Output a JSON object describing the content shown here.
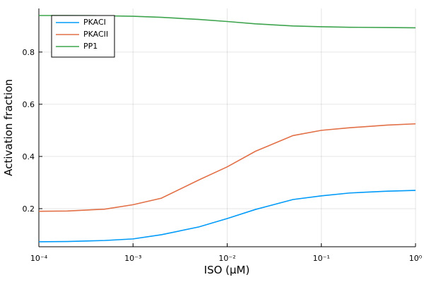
{
  "chart_data": {
    "type": "line",
    "x_label": "ISO (μM)",
    "y_label": "Activation fraction",
    "x": [
      0.0001,
      0.0002,
      0.0005,
      0.001,
      0.002,
      0.005,
      0.01,
      0.02,
      0.05,
      0.1,
      0.2,
      0.5,
      1
    ],
    "series": [
      {
        "name": "PKACI",
        "color": "#009af9",
        "values": [
          0.073,
          0.074,
          0.078,
          0.084,
          0.1,
          0.13,
          0.162,
          0.197,
          0.235,
          0.249,
          0.26,
          0.267,
          0.27
        ]
      },
      {
        "name": "PKACII",
        "color": "#e26f46",
        "values": [
          0.19,
          0.191,
          0.198,
          0.215,
          0.24,
          0.31,
          0.36,
          0.42,
          0.48,
          0.5,
          0.51,
          0.52,
          0.525
        ]
      },
      {
        "name": "PP1",
        "color": "#3da44d",
        "values": [
          0.94,
          0.94,
          0.939,
          0.937,
          0.933,
          0.925,
          0.917,
          0.908,
          0.9,
          0.897,
          0.895,
          0.894,
          0.893
        ]
      }
    ],
    "xscale": "log",
    "xlim": [
      0.0001,
      1
    ],
    "xticks": [
      {
        "value": 0.0001,
        "label": "10⁻⁴"
      },
      {
        "value": 0.001,
        "label": "10⁻³"
      },
      {
        "value": 0.01,
        "label": "10⁻²"
      },
      {
        "value": 0.1,
        "label": "10⁻¹"
      },
      {
        "value": 1,
        "label": "10⁰"
      }
    ],
    "ylim": [
      0.054,
      0.967
    ],
    "yticks": [
      0.2,
      0.4,
      0.6,
      0.8
    ],
    "grid": true,
    "legend": "upper-left"
  }
}
